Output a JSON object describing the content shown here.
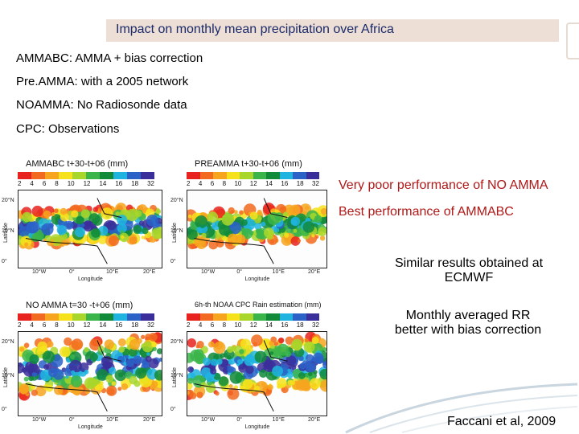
{
  "title": "Impact on monthly mean precipitation over Africa",
  "definitions": [
    {
      "term": "AMMABC",
      "desc": ": AMMA + bias correction"
    },
    {
      "term": "Pre.AMMA",
      "desc": ": with a 2005 network"
    },
    {
      "term": "NOAMMA",
      "desc": ": No Radiosonde data"
    },
    {
      "term": "CPC",
      "desc": ": Observations"
    }
  ],
  "maps": [
    {
      "title": "AMMABC   t+30-t+06 (mm)",
      "ylabel": "Latitude",
      "xlabel": "Longitude"
    },
    {
      "title": "PREAMMA   t+30-t+06 (mm)",
      "ylabel": "Latitude",
      "xlabel": "Longitude"
    },
    {
      "title": "NO AMMA   t=30 -t+06 (mm)",
      "ylabel": "Latitude",
      "xlabel": "Longitude"
    },
    {
      "title": "6h-th NOAA CPC Rain estimation (mm)",
      "ylabel": "Latitude",
      "xlabel": "Longitude"
    }
  ],
  "colorbar": {
    "labels": [
      "2",
      "4",
      "6",
      "8",
      "10",
      "12",
      "14",
      "16",
      "18",
      "32"
    ],
    "colors": [
      "#e8231f",
      "#f26a1f",
      "#f7a41f",
      "#f6e21c",
      "#a8d62a",
      "#3bb54a",
      "#118a3a",
      "#1fb4e0",
      "#2a62c8",
      "#3a2e9a"
    ]
  },
  "lat_ticks": [
    "20°N",
    "10°N",
    "0°"
  ],
  "lon_ticks": [
    "10°W",
    "0°",
    "10°E",
    "20°E"
  ],
  "notes": {
    "no_amma": "Very poor performance of NO AMMA",
    "best": "Best performance of AMMABC",
    "similar": "Similar results obtained at ECMWF",
    "monthly": "Monthly averaged RR better with bias correction",
    "citation": "Faccani et al, 2009"
  }
}
